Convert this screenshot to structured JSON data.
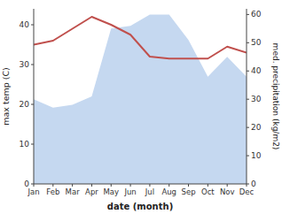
{
  "chart_data": {
    "type": "line",
    "xlabel": "date (month)",
    "ylabel": "max temp (C)",
    "y2label": "med. precipitation (kg/m2)",
    "categories": [
      "Jan",
      "Feb",
      "Mar",
      "Apr",
      "May",
      "Jun",
      "Jul",
      "Aug",
      "Sep",
      "Oct",
      "Nov",
      "Dec"
    ],
    "series": [
      {
        "type": "area",
        "axis": "y2",
        "color": "#c5d8f0",
        "values": [
          30,
          27,
          28,
          31,
          55,
          56,
          60,
          60,
          51,
          38,
          45,
          38
        ]
      },
      {
        "type": "line",
        "color": "#c0504d",
        "values": [
          35,
          36,
          39,
          42,
          40,
          37.5,
          32,
          31.5,
          31.5,
          31.5,
          34.5,
          33
        ]
      }
    ],
    "ylim": [
      0,
      44
    ],
    "yticks": [
      0,
      10,
      20,
      30,
      40
    ],
    "y2lim": [
      0,
      62
    ],
    "y2ticks": [
      0,
      10,
      20,
      30,
      40,
      50,
      60
    ],
    "grid": false
  }
}
